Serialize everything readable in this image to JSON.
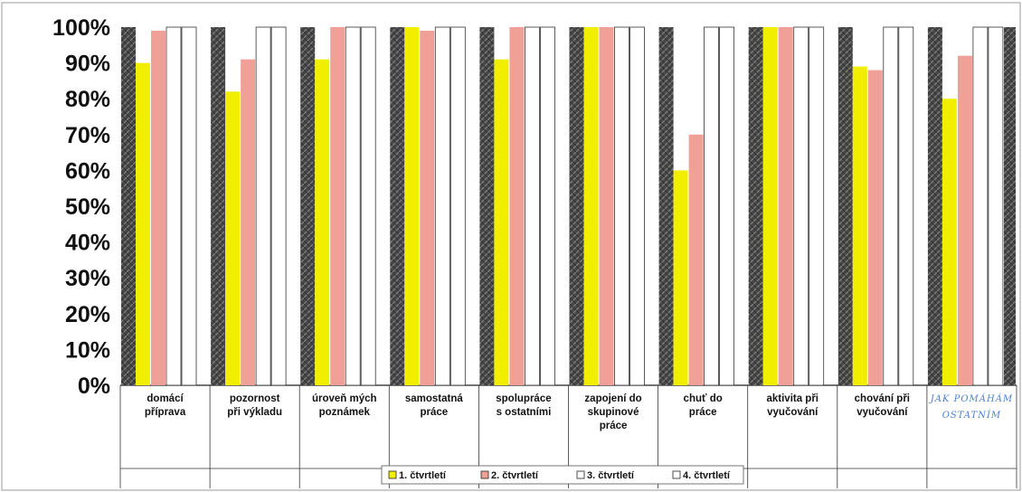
{
  "chart_data": {
    "type": "bar",
    "ylim": [
      0,
      100
    ],
    "yticks": [
      "0%",
      "10%",
      "20%",
      "30%",
      "40%",
      "50%",
      "60%",
      "70%",
      "80%",
      "90%",
      "100%"
    ],
    "categories": [
      [
        "domácí",
        "příprava"
      ],
      [
        "pozornost",
        "při výkladu"
      ],
      [
        "úroveň mých",
        "poznámek"
      ],
      [
        "samostatná",
        "práce"
      ],
      [
        "spolupráce",
        "s ostatními"
      ],
      [
        "zapojení do",
        "skupinové",
        "práce"
      ],
      [
        "chuť do",
        "práce"
      ],
      [
        "aktivita    při",
        "vyučování"
      ],
      [
        "chování    při",
        "vyučování"
      ],
      [
        "JAK POMÁHÁM",
        "OSTATNÍM"
      ]
    ],
    "handwritten_category_index": 9,
    "series": [
      {
        "name": "1. čtvrtletí",
        "color": "#f2ee00",
        "values": [
          90,
          82,
          91,
          100,
          91,
          100,
          60,
          100,
          89,
          80
        ]
      },
      {
        "name": "2. čtvrtletí",
        "color": "#f0a096",
        "values": [
          99,
          91,
          100,
          99,
          100,
          100,
          70,
          100,
          88,
          92
        ]
      },
      {
        "name": "3. čtvrtletí",
        "color": "#ffffff",
        "values": [
          100,
          100,
          100,
          100,
          100,
          100,
          100,
          100,
          100,
          100
        ]
      },
      {
        "name": "4. čtvrtletí",
        "color": "#ffffff",
        "values": [
          100,
          100,
          100,
          100,
          100,
          100,
          100,
          100,
          100,
          100
        ]
      }
    ],
    "legend_position": "bottom",
    "grid": false
  }
}
